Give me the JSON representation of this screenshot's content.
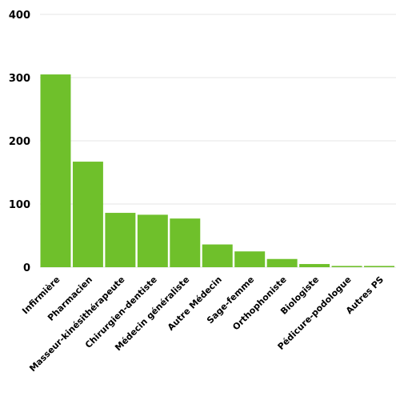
{
  "chart_data": {
    "type": "bar",
    "title": "",
    "xlabel": "",
    "ylabel": "",
    "categories": [
      "Infirmière",
      "Pharmacien",
      "Masseur-kinésithérapeute",
      "Chirurgien-dentiste",
      "Médecin généraliste",
      "Autre Médecin",
      "Sage-femme",
      "Orthophoniste",
      "Biologiste",
      "Pédicure-podologue",
      "Autres PS"
    ],
    "values": [
      305,
      167,
      86,
      83,
      77,
      36,
      25,
      13,
      5,
      2,
      2
    ],
    "ylim": [
      0,
      400
    ],
    "yticks": [
      0,
      100,
      200,
      300,
      400
    ],
    "grid": true,
    "bar_color": "#6fc02b",
    "grid_color": "#e6e6e6"
  }
}
